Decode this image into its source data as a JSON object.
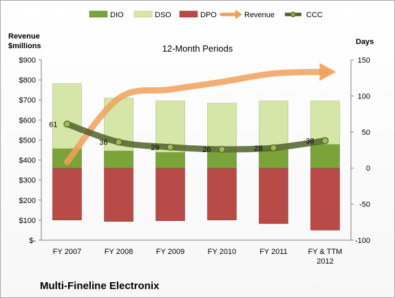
{
  "chart_data": {
    "type": "bar",
    "title": "12-Month Periods",
    "company": "Multi-Fineline Electronix",
    "y_left_title_line1": "Revenue",
    "y_left_title_line2": "$millions",
    "y_right_title": "Days",
    "y_left_ticks": [
      "$-",
      "$100",
      "$200",
      "$300",
      "$400",
      "$500",
      "$600",
      "$700",
      "$800",
      "$900"
    ],
    "y_right_ticks": [
      "-100",
      "-50",
      "0",
      "50",
      "100",
      "150"
    ],
    "ylim_days": [
      -100,
      150
    ],
    "ylim_revenue": [
      0,
      900
    ],
    "categories": [
      {
        "line1": "FY 2007",
        "line2": ""
      },
      {
        "line1": "FY 2008",
        "line2": ""
      },
      {
        "line1": "FY 2009",
        "line2": ""
      },
      {
        "line1": "FY 2010",
        "line2": ""
      },
      {
        "line1": "FY 2011",
        "line2": ""
      },
      {
        "line1": "FY & TTM",
        "line2": "2012"
      }
    ],
    "series": [
      {
        "name": "DIO",
        "color": "#7aa33a",
        "values": [
          27,
          24,
          22,
          22,
          26,
          33
        ]
      },
      {
        "name": "DSO",
        "color": "#d6e6a8",
        "values": [
          90,
          73,
          71,
          68,
          67,
          60
        ]
      },
      {
        "name": "DPO",
        "color": "#b84a48",
        "values": [
          -72,
          -74,
          -73,
          -72,
          -77,
          -86
        ]
      },
      {
        "name": "Revenue",
        "color": "#f0a05a",
        "values": [
          390,
          708,
          752,
          790,
          832,
          840
        ]
      },
      {
        "name": "CCC",
        "color": "#4f6228",
        "values": [
          61,
          36,
          29,
          26,
          28,
          38
        ]
      }
    ],
    "ccc_labels": [
      "61",
      "36",
      "29",
      "26",
      "28",
      "38"
    ],
    "legend": [
      "DIO",
      "DSO",
      "DPO",
      "Revenue",
      "CCC"
    ]
  }
}
